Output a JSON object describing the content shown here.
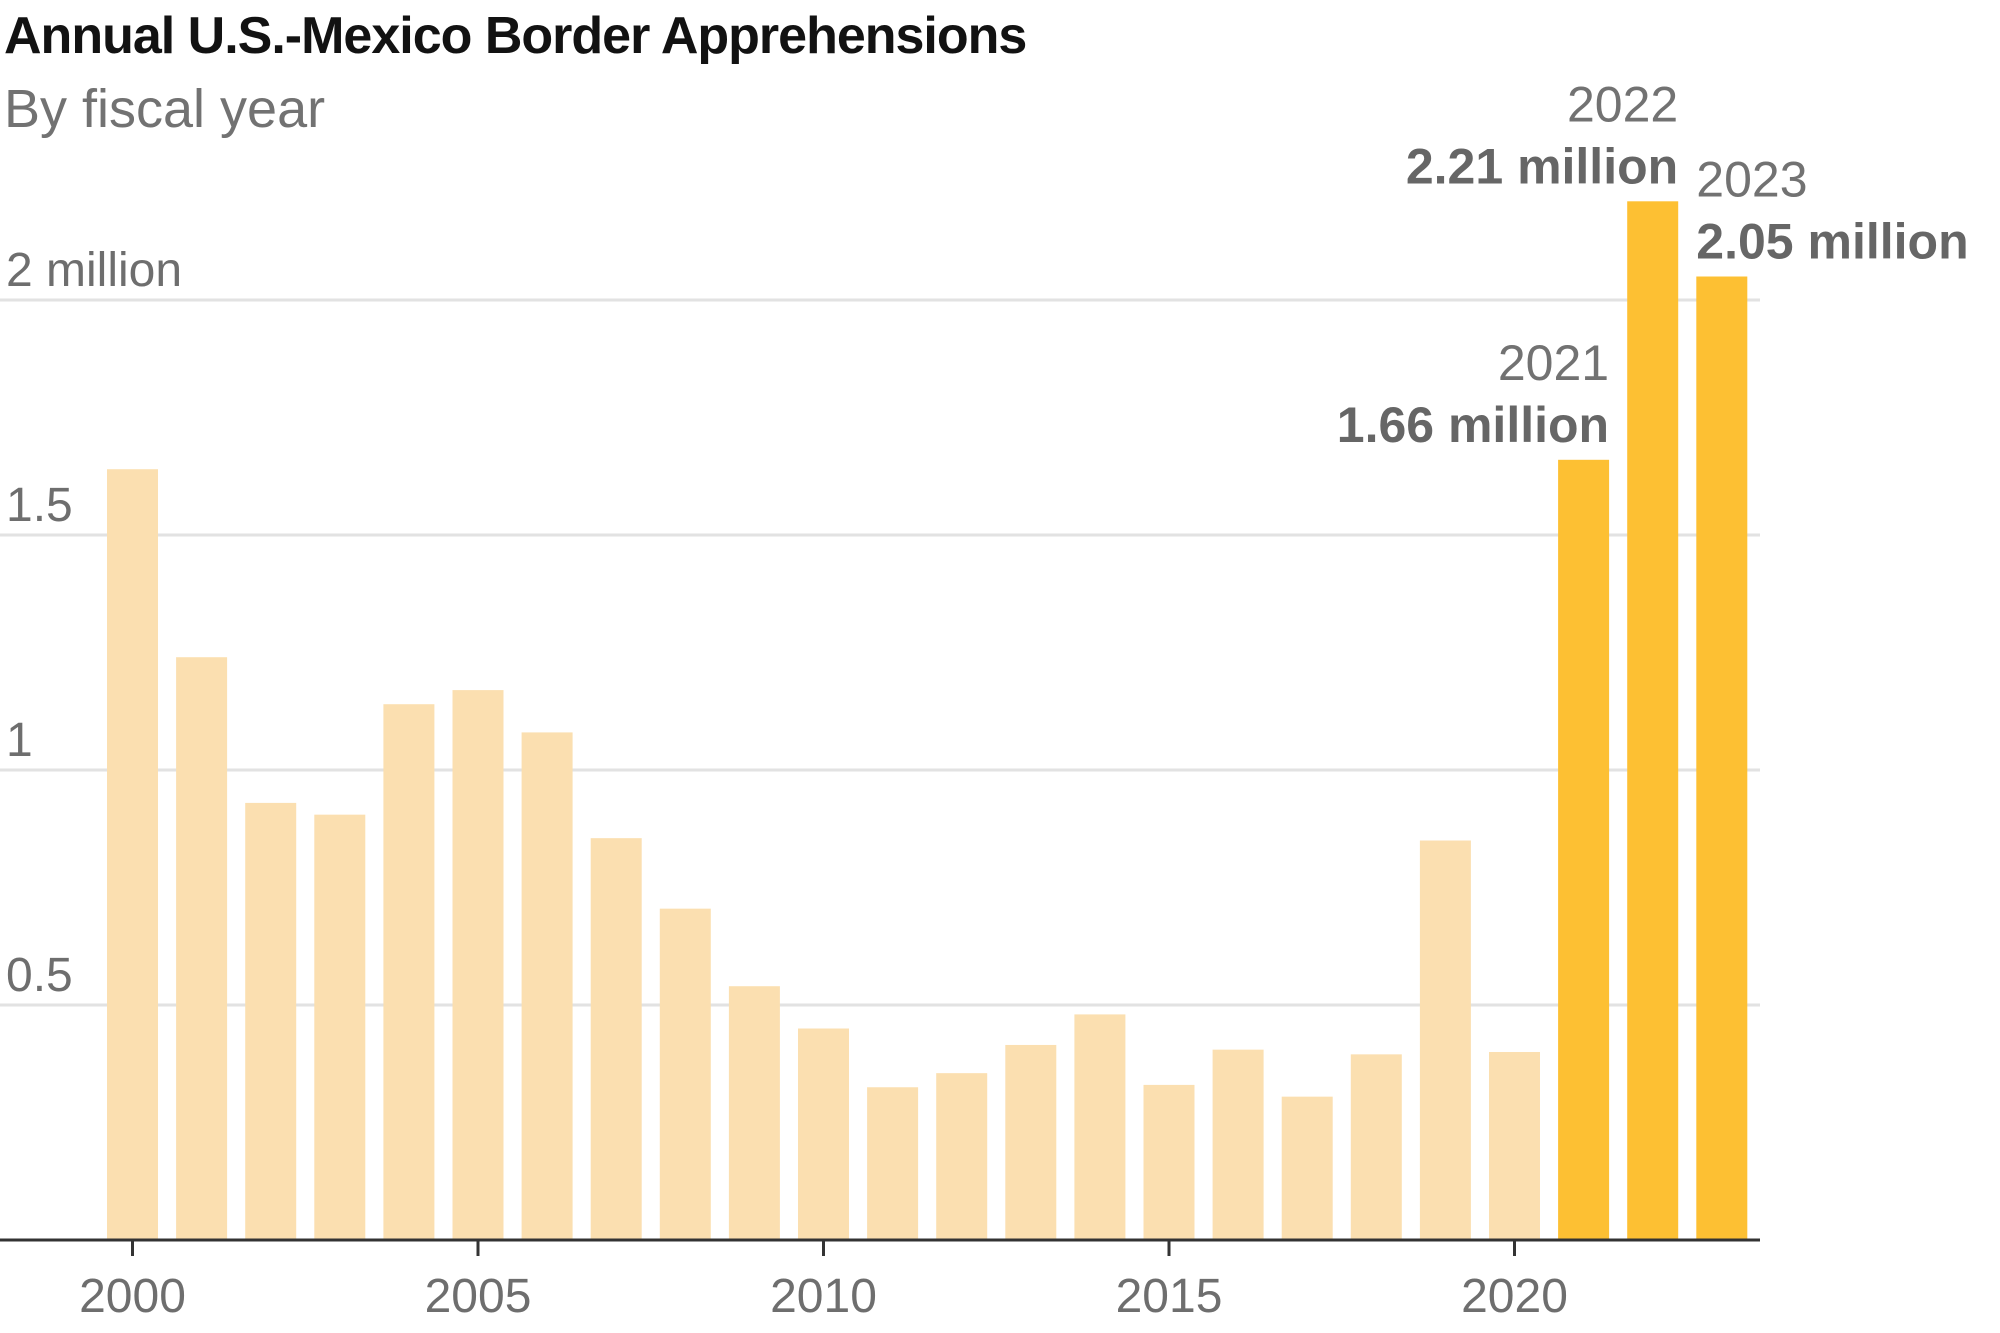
{
  "chart_data": {
    "type": "bar",
    "title": "Annual U.S.-Mexico Border Apprehensions",
    "subtitle": "By fiscal year",
    "xlabel": "",
    "ylabel": "",
    "categories": [
      2000,
      2001,
      2002,
      2003,
      2004,
      2005,
      2006,
      2007,
      2008,
      2009,
      2010,
      2011,
      2012,
      2013,
      2014,
      2015,
      2016,
      2017,
      2018,
      2019,
      2020,
      2021,
      2022,
      2023
    ],
    "values": [
      1.64,
      1.24,
      0.93,
      0.905,
      1.14,
      1.17,
      1.08,
      0.855,
      0.705,
      0.54,
      0.45,
      0.325,
      0.355,
      0.415,
      0.48,
      0.33,
      0.405,
      0.305,
      0.395,
      0.85,
      0.4,
      1.66,
      2.21,
      2.05
    ],
    "highlight": [
      2021,
      2022,
      2023
    ],
    "ylim": [
      0,
      2.21
    ],
    "y_ticks": [
      {
        "value": 0.5,
        "label": "0.5"
      },
      {
        "value": 1,
        "label": "1"
      },
      {
        "value": 1.5,
        "label": "1.5"
      },
      {
        "value": 2,
        "label": "2 million"
      }
    ],
    "x_ticks": [
      {
        "value": 2000,
        "label": "2000"
      },
      {
        "value": 2005,
        "label": "2005"
      },
      {
        "value": 2010,
        "label": "2010"
      },
      {
        "value": 2015,
        "label": "2015"
      },
      {
        "value": 2020,
        "label": "2020"
      }
    ],
    "annotations": [
      {
        "year": 2021,
        "year_label": "2021",
        "value_label": "1.66 million",
        "align": "end"
      },
      {
        "year": 2022,
        "year_label": "2022",
        "value_label": "2.21 million",
        "align": "end"
      },
      {
        "year": 2023,
        "year_label": "2023",
        "value_label": "2.05 million",
        "align": "start"
      }
    ],
    "grid": true,
    "legend": "none",
    "colors": {
      "bar": "#fbdfb0",
      "bar_highlight": "#fdc033",
      "grid": "#e2e2e2",
      "axis": "#333333"
    }
  }
}
